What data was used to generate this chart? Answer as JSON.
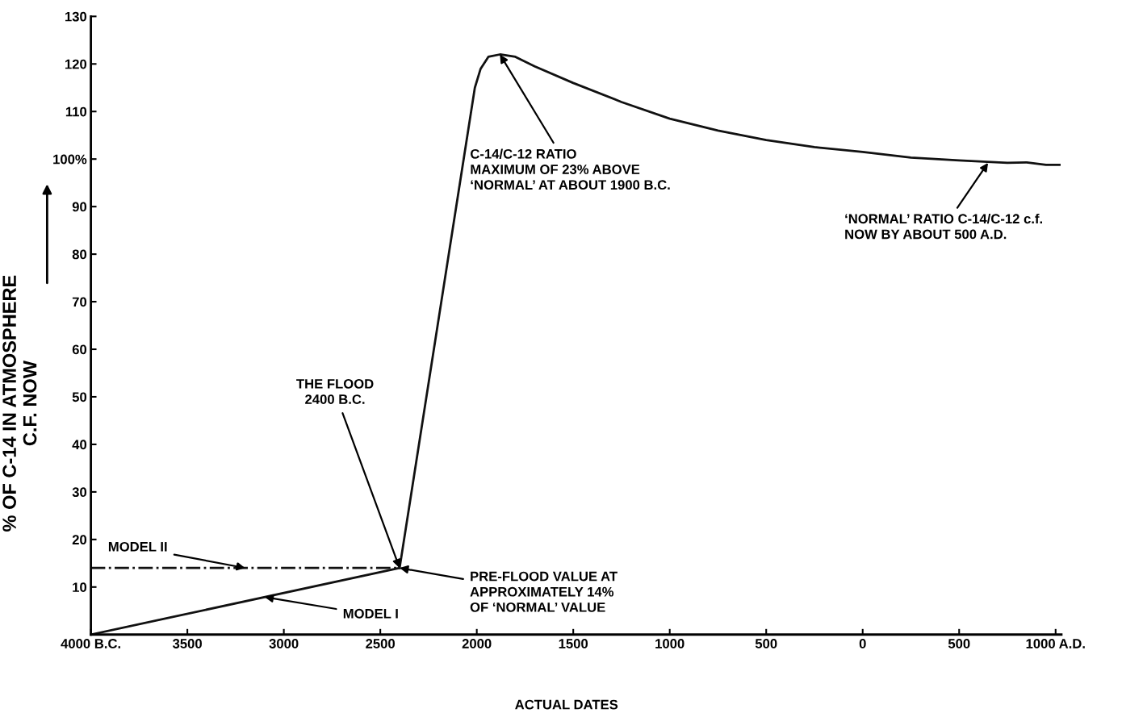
{
  "chart_data": {
    "type": "line",
    "xlabel": "ACTUAL DATES",
    "ylabel": "% OF C-14 IN ATMOSPHERE\nC.F. NOW",
    "series": [
      {
        "color": "#111111",
        "line_style": "solid",
        "x": [
          -4000,
          -2400
        ],
        "values": [
          0,
          14
        ]
      },
      {
        "color": "#111111",
        "line_style": "dashdot",
        "x": [
          -4000,
          -2400
        ],
        "values": [
          14,
          14
        ]
      },
      {
        "color": "#111111",
        "line_style": "solid",
        "x": [
          -2400,
          -2010,
          -1980,
          -1940,
          -1880,
          -1800,
          -1700,
          -1500,
          -1250,
          -1000,
          -750,
          -500,
          -250,
          0,
          250,
          500,
          750,
          850,
          950,
          1020
        ],
        "values": [
          14,
          115,
          119,
          121.5,
          122,
          121.5,
          119.5,
          116,
          112,
          108.5,
          106,
          104,
          102.5,
          101.5,
          100.3,
          99.7,
          99.2,
          99.3,
          98.8,
          98.8
        ]
      }
    ],
    "xlim": [
      -4000,
      1030
    ],
    "ylim": [
      0,
      130
    ],
    "xticks": [
      {
        "value": -4000,
        "label": "4000 B.C."
      },
      {
        "value": -3500,
        "label": "3500"
      },
      {
        "value": -3000,
        "label": "3000"
      },
      {
        "value": -2500,
        "label": "2500"
      },
      {
        "value": -2000,
        "label": "2000"
      },
      {
        "value": -1500,
        "label": "1500"
      },
      {
        "value": -1000,
        "label": "1000"
      },
      {
        "value": -500,
        "label": "500"
      },
      0,
      {
        "value": 500,
        "label": "500"
      },
      {
        "value": 1000,
        "label": "1000 A.D."
      }
    ],
    "yticks": [
      10,
      20,
      30,
      40,
      50,
      60,
      70,
      80,
      90,
      {
        "value": 100,
        "label": "100%"
      },
      110,
      120,
      130
    ],
    "grid": false,
    "legend": false,
    "annotations": [
      {
        "text": "THE FLOOD\n2400 B.C.",
        "x": -2400,
        "y": 14
      },
      {
        "text": "C-14/C-12 RATIO\nMAXIMUM OF 23% ABOVE\n‘NORMAL’ AT ABOUT 1900 B.C.",
        "x": -1880,
        "y": 122
      },
      {
        "text": "‘NORMAL’ RATIO C-14/C-12 c.f.\nNOW BY ABOUT 500 A.D.",
        "x": 650,
        "y": 99.2
      },
      {
        "text": "PRE-FLOOD VALUE AT\nAPPROXIMATELY 14%\nOF ‘NORMAL’ VALUE",
        "x": -2400,
        "y": 14
      },
      {
        "text": "MODEL II",
        "x": -3200,
        "y": 14
      },
      {
        "text": "MODEL I",
        "x": -3100,
        "y": 7.9
      }
    ]
  }
}
